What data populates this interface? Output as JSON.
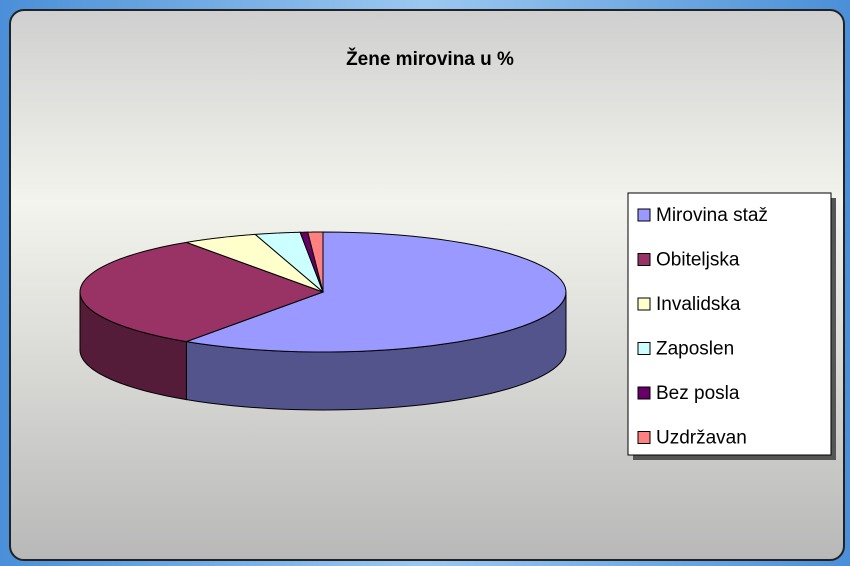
{
  "chart_data": {
    "type": "pie",
    "title": "Žene mirovina u %",
    "categories": [
      "Mirovina staž",
      "Obiteljska",
      "Invalidska",
      "Zaposlen",
      "Bez posla",
      "Uzdržavan"
    ],
    "values": [
      59.5,
      31,
      5,
      3,
      0.5,
      1
    ],
    "colors": [
      "#9999ff",
      "#993366",
      "#ffffcc",
      "#ccffff",
      "#660066",
      "#ff8080"
    ],
    "legend": "right"
  }
}
